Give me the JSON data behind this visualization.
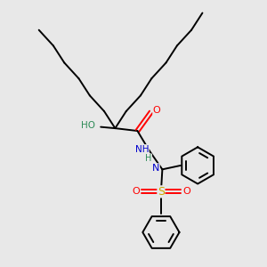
{
  "bg_color": "#e8e8e8",
  "atom_colors": {
    "O": "#ff0000",
    "N": "#0000cc",
    "S": "#ccaa00",
    "H": "#2e8b57"
  },
  "bond_color": "#000000",
  "bond_width": 1.4,
  "figsize": [
    3.0,
    3.0
  ],
  "dpi": 100,
  "xlim": [
    0,
    10
  ],
  "ylim": [
    0,
    10
  ]
}
